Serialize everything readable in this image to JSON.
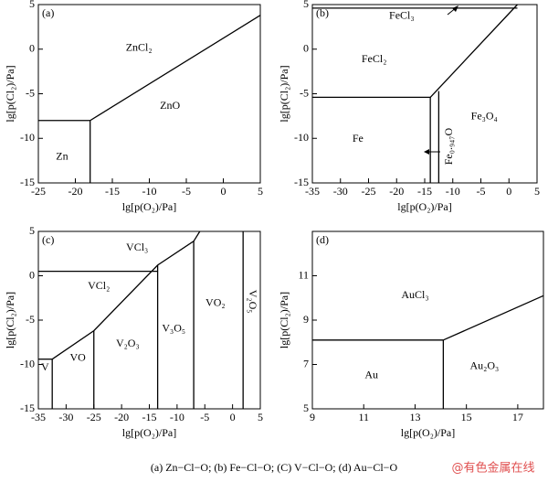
{
  "chart_data": [
    {
      "type": "line",
      "panel_label": "(a)",
      "xlabel": "lg[p(O₂)/Pa]",
      "ylabel": "lg[p(Cl₂)/Pa]",
      "xlim": [
        -25,
        5
      ],
      "ylim": [
        -15,
        5
      ],
      "xticks": [
        -25,
        -20,
        -15,
        -10,
        -5,
        0,
        5
      ],
      "yticks": [
        5,
        0,
        -5,
        -10,
        -15
      ],
      "color": "#000000",
      "series": [
        {
          "x": [
            -25,
            -18
          ],
          "values": [
            -8,
            -8
          ]
        },
        {
          "x": [
            -18,
            -18
          ],
          "values": [
            -15,
            -8
          ]
        },
        {
          "x": [
            -18,
            5
          ],
          "values": [
            -8,
            3.8
          ]
        }
      ],
      "annotations": [
        {
          "text": "ZnCl₂",
          "x": -11.4,
          "y": 0.1
        },
        {
          "text": "ZnO",
          "x": -7.2,
          "y": -6.4
        },
        {
          "text": "Zn",
          "x": -21.8,
          "y": -12.1
        }
      ]
    },
    {
      "type": "line",
      "panel_label": "(b)",
      "xlabel": "lg[p(O₂)/Pa]",
      "ylabel": "lg[p(Cl₂)/Pa]",
      "xlim": [
        -35,
        5
      ],
      "ylim": [
        -15,
        5
      ],
      "xticks": [
        -35,
        -30,
        -25,
        -20,
        -15,
        -10,
        -5,
        0,
        5
      ],
      "yticks": [
        5,
        0,
        -5,
        -10,
        -15
      ],
      "color": "#000000",
      "series": [
        {
          "x": [
            -35,
            1.5
          ],
          "values": [
            4.6,
            4.6
          ]
        },
        {
          "x": [
            -35,
            -14
          ],
          "values": [
            -5.4,
            -5.4
          ]
        },
        {
          "x": [
            -14,
            -14
          ],
          "values": [
            -15,
            -5.4
          ]
        },
        {
          "x": [
            -12.5,
            -12.5
          ],
          "values": [
            -15,
            -4.7
          ]
        },
        {
          "x": [
            -14,
            1.5
          ],
          "values": [
            -5.4,
            5
          ]
        }
      ],
      "annotations": [
        {
          "text": "FeCl₃",
          "x": -19.1,
          "y": 3.7
        },
        {
          "text": "FeCl₂",
          "x": -24,
          "y": -1.2
        },
        {
          "text": "Fe",
          "x": -26.9,
          "y": -10.1
        },
        {
          "text": "Fe₃O₄",
          "x": -4.4,
          "y": -7.6
        },
        {
          "text": "Fe₀.₉₄₇O",
          "x": -10.6,
          "y": -10.9,
          "rotate": -90
        }
      ]
    },
    {
      "type": "line",
      "panel_label": "(c)",
      "xlabel": "lg[p(O₂)/Pa]",
      "ylabel": "lg[p(Cl₂)/Pa]",
      "xlim": [
        -35,
        5
      ],
      "ylim": [
        -15,
        5
      ],
      "xticks": [
        -35,
        -30,
        -25,
        -20,
        -15,
        -10,
        -5,
        0,
        5
      ],
      "yticks": [
        5,
        0,
        -5,
        -10,
        -15
      ],
      "color": "#000000",
      "series": [
        {
          "x": [
            -35,
            -13.5
          ],
          "values": [
            0.5,
            0.5
          ]
        },
        {
          "x": [
            -35,
            -32.5
          ],
          "values": [
            -9.4,
            -9.4
          ]
        },
        {
          "x": [
            -32.5,
            -25,
            -13.5,
            -7,
            -5.9
          ],
          "values": [
            -9.4,
            -6.2,
            1.2,
            3.9,
            5
          ]
        },
        {
          "x": [
            -32.5,
            -32.5
          ],
          "values": [
            -15,
            -9.4
          ]
        },
        {
          "x": [
            -25,
            -25
          ],
          "values": [
            -15,
            -6.2
          ]
        },
        {
          "x": [
            -13.5,
            -13.5
          ],
          "values": [
            -15,
            1.2
          ]
        },
        {
          "x": [
            -7,
            -7
          ],
          "values": [
            -15,
            3.9
          ]
        },
        {
          "x": [
            1.9,
            1.9
          ],
          "values": [
            -15,
            5
          ]
        }
      ],
      "annotations": [
        {
          "text": "VCl₃",
          "x": -17.2,
          "y": 3.1
        },
        {
          "text": "VCl₂",
          "x": -24.1,
          "y": -1.2
        },
        {
          "text": "V",
          "x": -33.8,
          "y": -10.4
        },
        {
          "text": "VO",
          "x": -27.9,
          "y": -9.3
        },
        {
          "text": "V₂O₃",
          "x": -18.9,
          "y": -7.7
        },
        {
          "text": "V₃O₅",
          "x": -10.6,
          "y": -6
        },
        {
          "text": "VO₂",
          "x": -3.1,
          "y": -3.1
        },
        {
          "text": "V₂O₅",
          "x": 3.5,
          "y": -2.9,
          "rotate": 90
        }
      ]
    },
    {
      "type": "line",
      "panel_label": "(d)",
      "xlabel": "lg[p(O₂)/Pa]",
      "ylabel": "lg[p(Cl₂)/Pa]",
      "xlim": [
        9,
        18
      ],
      "ylim": [
        5,
        13
      ],
      "xticks": [
        9,
        11,
        13,
        15,
        17
      ],
      "yticks": [
        5,
        7,
        9,
        11
      ],
      "color": "#000000",
      "series": [
        {
          "x": [
            9,
            14.1
          ],
          "values": [
            8.1,
            8.1
          ]
        },
        {
          "x": [
            14.1,
            14.1
          ],
          "values": [
            5,
            8.1
          ]
        },
        {
          "x": [
            14.1,
            18
          ],
          "values": [
            8.1,
            10.1
          ]
        }
      ],
      "annotations": [
        {
          "text": "AuCl₃",
          "x": 13,
          "y": 10.1
        },
        {
          "text": "Au",
          "x": 11.3,
          "y": 6.5
        },
        {
          "text": "Au₂O₃",
          "x": 15.7,
          "y": 6.9
        }
      ]
    }
  ],
  "caption": "(a)  Zn−Cl−O;  (b)  Fe−Cl−O;  (C)  V−Cl−O; (d) Au−Cl−O",
  "watermark": "@有色金属在线"
}
